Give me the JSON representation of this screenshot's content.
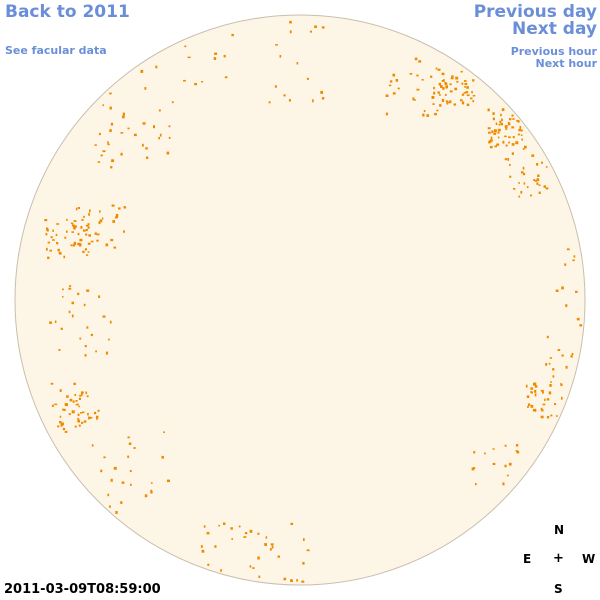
{
  "nav": {
    "back": "Back to 2011",
    "facular": "See facular data",
    "prev_day": "Previous day",
    "next_day": "Next day",
    "prev_hour": "Previous hour",
    "next_hour": "Next hour"
  },
  "compass": {
    "north": "N",
    "east": "E",
    "center": "+",
    "west": "W",
    "south": "S"
  },
  "timestamp": "2011-03-09T08:59:00",
  "colors": {
    "disk_fill": "#fdf6e6",
    "disk_stroke": "#c8bfae",
    "facula": "#ef8a00",
    "link": "#6a8fd8"
  }
}
